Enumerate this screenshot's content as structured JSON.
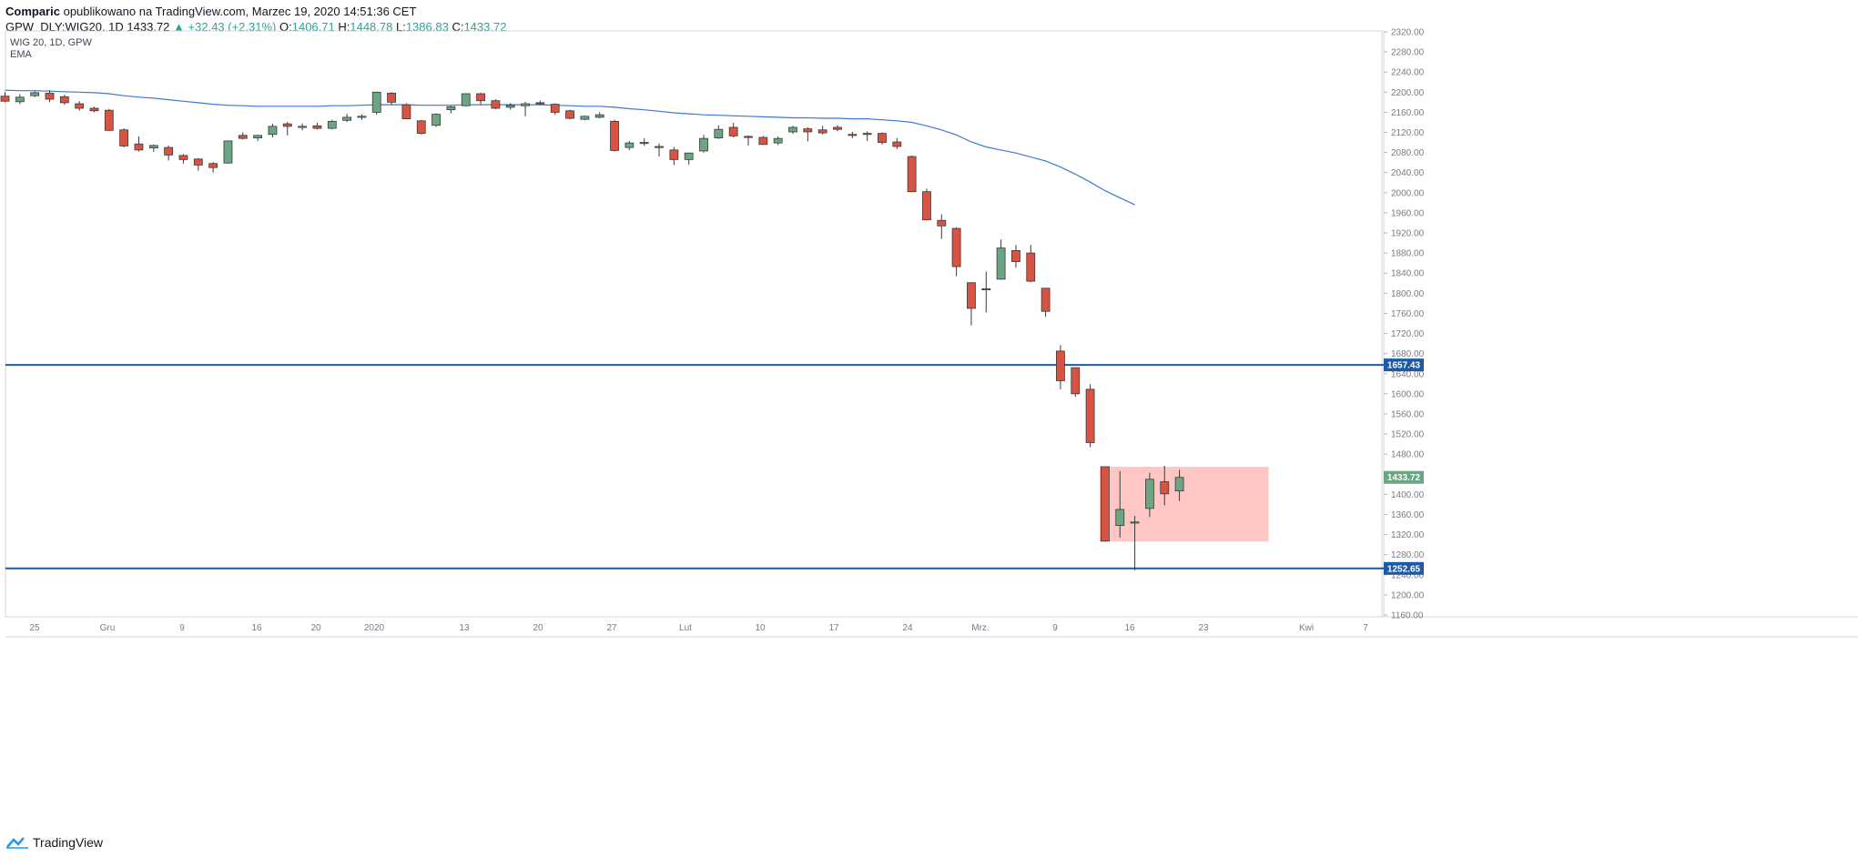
{
  "header": {
    "author": "Comparic",
    "published_text": "opublikowano na TradingView.com, Marzec 19, 2020 14:51:36 CET",
    "symbol": "GPW_DLY:WIG20, 1D",
    "last": "1433.72",
    "change": "▲ +32.43 (+2.31%)",
    "o_label": "O:",
    "o_value": "1406.71",
    "h_label": "H:",
    "h_value": "1448.78",
    "l_label": "L:",
    "l_value": "1386.83",
    "c_label": "C:",
    "c_value": "1433.72"
  },
  "legend": {
    "title": "WIG 20, 1D, GPW",
    "indicator": "EMA"
  },
  "footer": {
    "brand": "TradingView"
  },
  "colors": {
    "up": "#6ba583",
    "down": "#d75442",
    "ema": "#3c78d8",
    "hline": "#1c5aa6",
    "zone": "#ffbcbc",
    "last_price_tag": "#6ba583",
    "grid": "#e0e3eb"
  },
  "chart_data": {
    "type": "candlestick",
    "title": "WIG 20, 1D, GPW",
    "ylim": [
      1160,
      2320
    ],
    "y_ticks": [
      "2320.00",
      "2280.00",
      "2240.00",
      "2200.00",
      "2160.00",
      "2120.00",
      "2080.00",
      "2040.00",
      "2000.00",
      "1960.00",
      "1920.00",
      "1880.00",
      "1840.00",
      "1800.00",
      "1760.00",
      "1720.00",
      "1680.00",
      "1640.00",
      "1600.00",
      "1560.00",
      "1520.00",
      "1480.00",
      "1440.00",
      "1400.00",
      "1360.00",
      "1320.00",
      "1280.00",
      "1240.00",
      "1200.00",
      "1160.00"
    ],
    "x_ticks": [
      "25",
      "Gru",
      "9",
      "16",
      "20",
      "2020",
      "13",
      "20",
      "27",
      "Lut",
      "10",
      "17",
      "24",
      "Mrz.",
      "9",
      "16",
      "23",
      "Kwi",
      "7"
    ],
    "candles": [
      {
        "o": 2192,
        "h": 2200,
        "l": 2180,
        "c": 2182
      },
      {
        "o": 2181,
        "h": 2196,
        "l": 2176,
        "c": 2190
      },
      {
        "o": 2193,
        "h": 2202,
        "l": 2190,
        "c": 2199
      },
      {
        "o": 2198,
        "h": 2204,
        "l": 2180,
        "c": 2186
      },
      {
        "o": 2191,
        "h": 2195,
        "l": 2175,
        "c": 2179
      },
      {
        "o": 2177,
        "h": 2182,
        "l": 2163,
        "c": 2168
      },
      {
        "o": 2168,
        "h": 2171,
        "l": 2160,
        "c": 2163
      },
      {
        "o": 2164,
        "h": 2167,
        "l": 2123,
        "c": 2124
      },
      {
        "o": 2125,
        "h": 2128,
        "l": 2090,
        "c": 2093
      },
      {
        "o": 2097,
        "h": 2112,
        "l": 2082,
        "c": 2085
      },
      {
        "o": 2089,
        "h": 2096,
        "l": 2081,
        "c": 2094
      },
      {
        "o": 2090,
        "h": 2094,
        "l": 2064,
        "c": 2075
      },
      {
        "o": 2074,
        "h": 2077,
        "l": 2058,
        "c": 2066
      },
      {
        "o": 2067,
        "h": 2069,
        "l": 2044,
        "c": 2055
      },
      {
        "o": 2058,
        "h": 2061,
        "l": 2040,
        "c": 2050
      },
      {
        "o": 2059,
        "h": 2103,
        "l": 2058,
        "c": 2103
      },
      {
        "o": 2114,
        "h": 2120,
        "l": 2106,
        "c": 2108
      },
      {
        "o": 2109,
        "h": 2115,
        "l": 2103,
        "c": 2114
      },
      {
        "o": 2116,
        "h": 2137,
        "l": 2110,
        "c": 2132
      },
      {
        "o": 2137,
        "h": 2141,
        "l": 2114,
        "c": 2132
      },
      {
        "o": 2131,
        "h": 2138,
        "l": 2124,
        "c": 2132
      },
      {
        "o": 2133,
        "h": 2139,
        "l": 2126,
        "c": 2128
      },
      {
        "o": 2128,
        "h": 2145,
        "l": 2126,
        "c": 2142
      },
      {
        "o": 2144,
        "h": 2157,
        "l": 2141,
        "c": 2150
      },
      {
        "o": 2150,
        "h": 2156,
        "l": 2145,
        "c": 2152
      },
      {
        "o": 2160,
        "h": 2201,
        "l": 2155,
        "c": 2200
      },
      {
        "o": 2198,
        "h": 2200,
        "l": 2175,
        "c": 2180
      },
      {
        "o": 2175,
        "h": 2178,
        "l": 2147,
        "c": 2147
      },
      {
        "o": 2143,
        "h": 2145,
        "l": 2116,
        "c": 2118
      },
      {
        "o": 2134,
        "h": 2158,
        "l": 2131,
        "c": 2156
      },
      {
        "o": 2165,
        "h": 2173,
        "l": 2158,
        "c": 2171
      },
      {
        "o": 2173,
        "h": 2198,
        "l": 2172,
        "c": 2197
      },
      {
        "o": 2197,
        "h": 2199,
        "l": 2176,
        "c": 2183
      },
      {
        "o": 2183,
        "h": 2186,
        "l": 2166,
        "c": 2168
      },
      {
        "o": 2170,
        "h": 2178,
        "l": 2165,
        "c": 2174
      },
      {
        "o": 2173,
        "h": 2181,
        "l": 2152,
        "c": 2177
      },
      {
        "o": 2179,
        "h": 2183,
        "l": 2174,
        "c": 2178
      },
      {
        "o": 2176,
        "h": 2178,
        "l": 2155,
        "c": 2160
      },
      {
        "o": 2163,
        "h": 2165,
        "l": 2146,
        "c": 2148
      },
      {
        "o": 2146,
        "h": 2153,
        "l": 2144,
        "c": 2152
      },
      {
        "o": 2150,
        "h": 2160,
        "l": 2148,
        "c": 2155
      },
      {
        "o": 2142,
        "h": 2145,
        "l": 2082,
        "c": 2084
      },
      {
        "o": 2090,
        "h": 2103,
        "l": 2085,
        "c": 2099
      },
      {
        "o": 2100,
        "h": 2108,
        "l": 2093,
        "c": 2099
      },
      {
        "o": 2092,
        "h": 2098,
        "l": 2072,
        "c": 2090
      },
      {
        "o": 2085,
        "h": 2091,
        "l": 2055,
        "c": 2066
      },
      {
        "o": 2066,
        "h": 2075,
        "l": 2056,
        "c": 2079
      },
      {
        "o": 2083,
        "h": 2115,
        "l": 2080,
        "c": 2108
      },
      {
        "o": 2109,
        "h": 2134,
        "l": 2107,
        "c": 2126
      },
      {
        "o": 2130,
        "h": 2139,
        "l": 2110,
        "c": 2113
      },
      {
        "o": 2112,
        "h": 2114,
        "l": 2094,
        "c": 2110
      },
      {
        "o": 2110,
        "h": 2113,
        "l": 2095,
        "c": 2096
      },
      {
        "o": 2099,
        "h": 2112,
        "l": 2095,
        "c": 2108
      },
      {
        "o": 2121,
        "h": 2133,
        "l": 2117,
        "c": 2130
      },
      {
        "o": 2127,
        "h": 2130,
        "l": 2102,
        "c": 2121
      },
      {
        "o": 2125,
        "h": 2133,
        "l": 2116,
        "c": 2119
      },
      {
        "o": 2130,
        "h": 2134,
        "l": 2122,
        "c": 2126
      },
      {
        "o": 2116,
        "h": 2121,
        "l": 2108,
        "c": 2114
      },
      {
        "o": 2118,
        "h": 2122,
        "l": 2103,
        "c": 2117
      },
      {
        "o": 2118,
        "h": 2120,
        "l": 2096,
        "c": 2100
      },
      {
        "o": 2101,
        "h": 2109,
        "l": 2087,
        "c": 2092
      },
      {
        "o": 2072,
        "h": 2074,
        "l": 2001,
        "c": 2002
      },
      {
        "o": 2002,
        "h": 2008,
        "l": 1945,
        "c": 1946
      },
      {
        "o": 1945,
        "h": 1957,
        "l": 1908,
        "c": 1934
      },
      {
        "o": 1929,
        "h": 1931,
        "l": 1834,
        "c": 1853
      },
      {
        "o": 1821,
        "h": 1822,
        "l": 1736,
        "c": 1770
      },
      {
        "o": 1807,
        "h": 1843,
        "l": 1762,
        "c": 1809
      },
      {
        "o": 1828,
        "h": 1907,
        "l": 1827,
        "c": 1890
      },
      {
        "o": 1885,
        "h": 1896,
        "l": 1851,
        "c": 1863
      },
      {
        "o": 1880,
        "h": 1896,
        "l": 1822,
        "c": 1824
      },
      {
        "o": 1810,
        "h": 1810,
        "l": 1753,
        "c": 1764
      },
      {
        "o": 1685,
        "h": 1697,
        "l": 1609,
        "c": 1626
      },
      {
        "o": 1652,
        "h": 1652,
        "l": 1594,
        "c": 1600
      },
      {
        "o": 1609,
        "h": 1619,
        "l": 1494,
        "c": 1503
      },
      {
        "o": 1455,
        "h": 1455,
        "l": 1306,
        "c": 1307
      },
      {
        "o": 1338,
        "h": 1446,
        "l": 1314,
        "c": 1370
      },
      {
        "o": 1345,
        "h": 1357,
        "l": 1249,
        "c": 1345
      },
      {
        "o": 1372,
        "h": 1443,
        "l": 1355,
        "c": 1430
      },
      {
        "o": 1425,
        "h": 1457,
        "l": 1378,
        "c": 1401
      },
      {
        "o": 1406.71,
        "h": 1448.78,
        "l": 1386.83,
        "c": 1433.72
      }
    ],
    "ema": [
      2204,
      2203,
      2203,
      2202,
      2201,
      2200,
      2199,
      2197,
      2193,
      2190,
      2188,
      2185,
      2182,
      2179,
      2176,
      2174,
      2173,
      2172,
      2172,
      2172,
      2172,
      2172,
      2173,
      2173,
      2174,
      2175,
      2175,
      2175,
      2174,
      2174,
      2174,
      2175,
      2175,
      2175,
      2175,
      2175,
      2175,
      2174,
      2173,
      2172,
      2172,
      2170,
      2167,
      2165,
      2162,
      2159,
      2157,
      2155,
      2154,
      2153,
      2152,
      2151,
      2150,
      2149,
      2149,
      2148,
      2148,
      2147,
      2147,
      2145,
      2143,
      2140,
      2133,
      2125,
      2115,
      2101,
      2091,
      2085,
      2079,
      2071,
      2063,
      2051,
      2037,
      2021,
      2004,
      1990,
      1976
    ],
    "horizontal_levels": [
      1657.43,
      1252.65
    ],
    "zone": {
      "from_index": 74,
      "to_index": 85,
      "top": 1455,
      "bottom": 1306
    },
    "last_price": 1433.72,
    "level_labels": [
      "1657.43",
      "1252.65",
      "1433.72"
    ]
  }
}
